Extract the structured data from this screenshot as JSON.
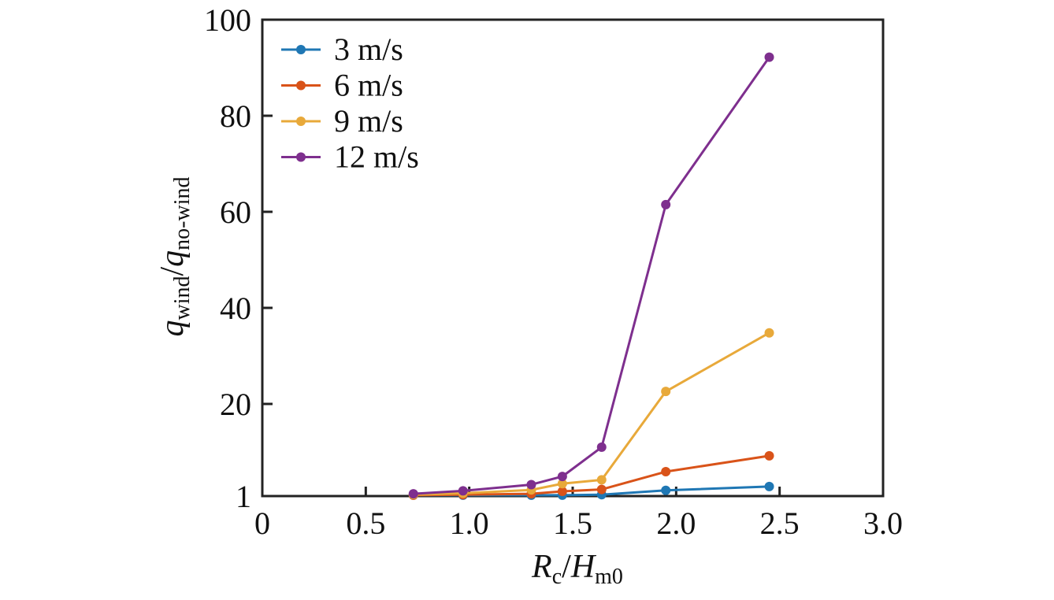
{
  "chart_data": {
    "type": "line",
    "title": "",
    "xlabel": {
      "main": "R",
      "main_sub": "c",
      "sep": "/",
      "second": "H",
      "second_sub": "m0"
    },
    "ylabel": {
      "main": "q",
      "main_sub": "wind",
      "sep": "/",
      "second": "q",
      "second_sub": "no-wind"
    },
    "xlim": [
      0,
      3.0
    ],
    "ylim": [
      1,
      100
    ],
    "x_ticks": [
      0,
      0.5,
      1.0,
      1.5,
      2.0,
      2.5,
      3.0
    ],
    "x_tick_labels": [
      "0",
      "0.5",
      "1.0",
      "1.5",
      "2.0",
      "2.5",
      "3.0"
    ],
    "y_ticks": [
      1,
      20,
      40,
      60,
      80,
      100
    ],
    "y_tick_labels": [
      "1",
      "20",
      "40",
      "60",
      "80",
      "100"
    ],
    "grid": false,
    "legend_position": "top-left",
    "x": [
      0.73,
      0.97,
      1.3,
      1.45,
      1.64,
      1.95,
      2.45
    ],
    "series": [
      {
        "name": "3 m/s",
        "color": "#1f77b4",
        "values": [
          1.0,
          1.0,
          1.0,
          1.0,
          1.1,
          2.0,
          2.8
        ]
      },
      {
        "name": "6 m/s",
        "color": "#d95319",
        "values": [
          1.0,
          1.1,
          1.3,
          1.8,
          2.2,
          5.9,
          9.2
        ]
      },
      {
        "name": "9 m/s",
        "color": "#e8a93a",
        "values": [
          1.1,
          1.4,
          2.1,
          3.4,
          4.2,
          22.6,
          34.8
        ]
      },
      {
        "name": "12 m/s",
        "color": "#7e2f8e",
        "values": [
          1.3,
          1.9,
          3.2,
          4.9,
          11.0,
          61.5,
          92.2
        ]
      }
    ]
  }
}
